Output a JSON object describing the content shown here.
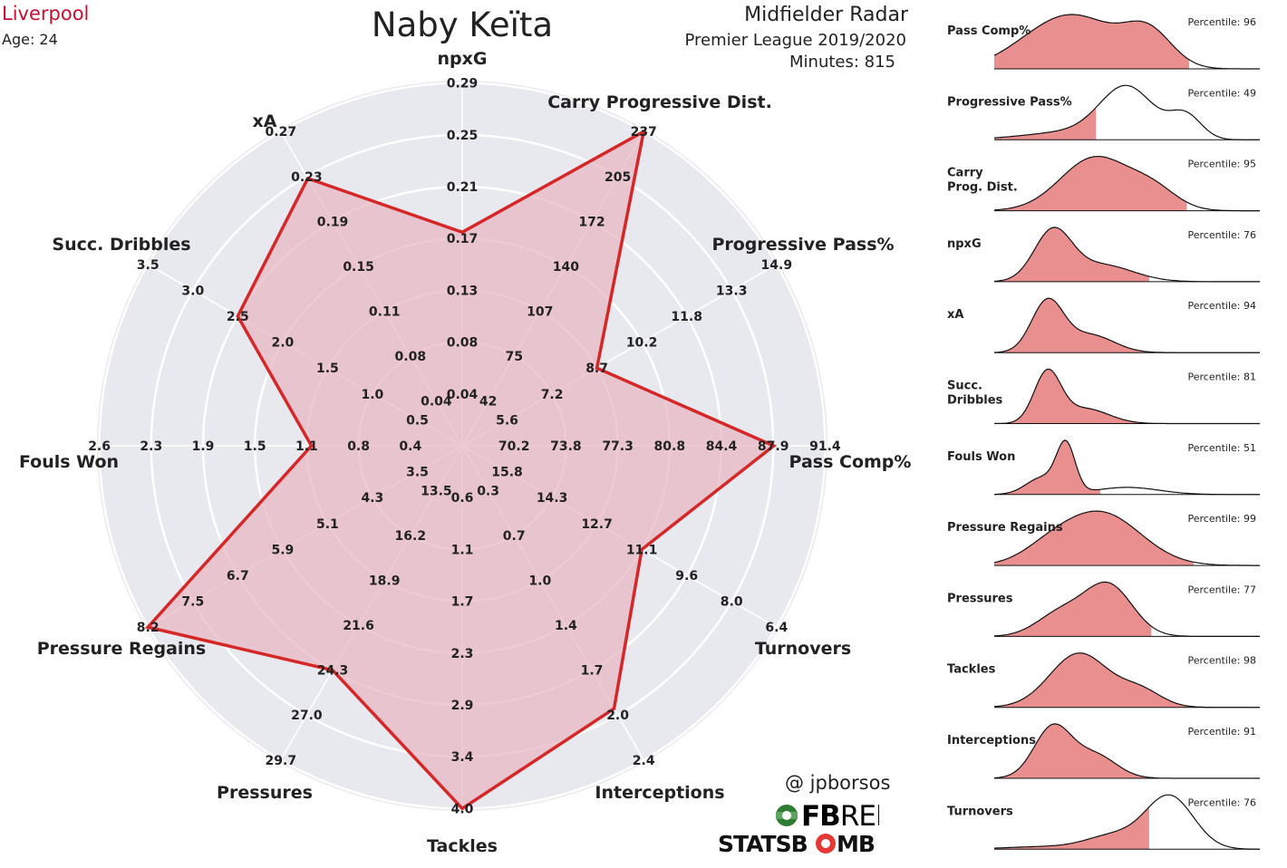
{
  "header": {
    "team": "Liverpool",
    "age": "Age: 24",
    "player": "Naby Keïta",
    "radar_title": "Midfielder Radar",
    "competition": "Premier League 2019/2020",
    "minutes": "Minutes: 815"
  },
  "credits": {
    "author": "@ jpborsos",
    "fbref_bold": "FB",
    "fbref_light": "REF",
    "statsbomb_a": "STATSB",
    "statsbomb_b": "MB"
  },
  "colors": {
    "accent": "#d62728",
    "fill": "#e8b7c0",
    "radar_bg": "#e8e8ef",
    "dist_fill": "#e98f8f"
  },
  "chart_data": [
    {
      "type": "radar",
      "axes": [
        {
          "label": "npxG",
          "ticks": [
            "0.04",
            "0.08",
            "0.13",
            "0.17",
            "0.21",
            "0.25",
            "0.29"
          ],
          "value": 0.17
        },
        {
          "label": "Carry Progressive Dist.",
          "ticks": [
            "42",
            "75",
            "107",
            "140",
            "172",
            "205",
            "237"
          ],
          "value": 237
        },
        {
          "label": "Progressive Pass%",
          "ticks": [
            "5.6",
            "7.2",
            "8.7",
            "10.2",
            "11.8",
            "13.3",
            "14.9"
          ],
          "value": 8.7
        },
        {
          "label": "Pass Comp%",
          "ticks": [
            "70.2",
            "73.8",
            "77.3",
            "80.8",
            "84.4",
            "87.9",
            "91.4"
          ],
          "value": 87.9
        },
        {
          "label": "Turnovers",
          "ticks": [
            "15.8",
            "14.3",
            "12.7",
            "11.1",
            "9.6",
            "8.0",
            "6.4"
          ],
          "value": 11.1
        },
        {
          "label": "Interceptions",
          "ticks": [
            "0.3",
            "0.7",
            "1.0",
            "1.4",
            "1.7",
            "2.0",
            "2.4"
          ],
          "value": 2.0
        },
        {
          "label": "Tackles",
          "ticks": [
            "0.6",
            "1.1",
            "1.7",
            "2.3",
            "2.9",
            "3.4",
            "4.0"
          ],
          "value": 4.0
        },
        {
          "label": "Pressures",
          "ticks": [
            "13.5",
            "16.2",
            "18.9",
            "21.6",
            "24.3",
            "27.0",
            "29.7"
          ],
          "value": 24.3
        },
        {
          "label": "Pressure Regains",
          "ticks": [
            "3.5",
            "4.3",
            "5.1",
            "5.9",
            "6.7",
            "7.5",
            "8.2"
          ],
          "value": 8.2
        },
        {
          "label": "Fouls Won",
          "ticks": [
            "0.4",
            "0.8",
            "1.1",
            "1.5",
            "1.9",
            "2.3",
            "2.6"
          ],
          "value": 1.1
        },
        {
          "label": "Succ. Dribbles",
          "ticks": [
            "0.5",
            "1.0",
            "1.5",
            "2.0",
            "2.5",
            "3.0",
            "3.5"
          ],
          "value": 2.5
        },
        {
          "label": "xA",
          "ticks": [
            "0.04",
            "0.08",
            "0.11",
            "0.15",
            "0.19",
            "0.23",
            "0.27"
          ],
          "value": 0.23
        }
      ]
    },
    {
      "type": "area",
      "distributions": [
        {
          "label": "Pass Comp%",
          "percentile": "Percentile: 96",
          "pct": 96,
          "shape": "pass"
        },
        {
          "label": "Progressive Pass%",
          "percentile": "Percentile: 49",
          "pct": 49,
          "shape": "progpass"
        },
        {
          "label": "Carry\nProg. Dist.",
          "percentile": "Percentile: 95",
          "pct": 95,
          "shape": "carry"
        },
        {
          "label": "npxG",
          "percentile": "Percentile: 76",
          "pct": 76,
          "shape": "npxg"
        },
        {
          "label": "xA",
          "percentile": "Percentile: 94",
          "pct": 94,
          "shape": "xa"
        },
        {
          "label": "Succ.\nDribbles",
          "percentile": "Percentile: 81",
          "pct": 81,
          "shape": "dribbles"
        },
        {
          "label": "Fouls Won",
          "percentile": "Percentile: 51",
          "pct": 51,
          "shape": "fouls"
        },
        {
          "label": "Pressure Regains",
          "percentile": "Percentile: 99",
          "pct": 99,
          "shape": "regains"
        },
        {
          "label": "Pressures",
          "percentile": "Percentile: 77",
          "pct": 77,
          "shape": "pressures"
        },
        {
          "label": "Tackles",
          "percentile": "Percentile: 98",
          "pct": 98,
          "shape": "tackles"
        },
        {
          "label": "Interceptions",
          "percentile": "Percentile: 91",
          "pct": 91,
          "shape": "interceptions"
        },
        {
          "label": "Turnovers",
          "percentile": "Percentile: 76",
          "pct": 76,
          "shape": "turnovers"
        }
      ]
    }
  ]
}
